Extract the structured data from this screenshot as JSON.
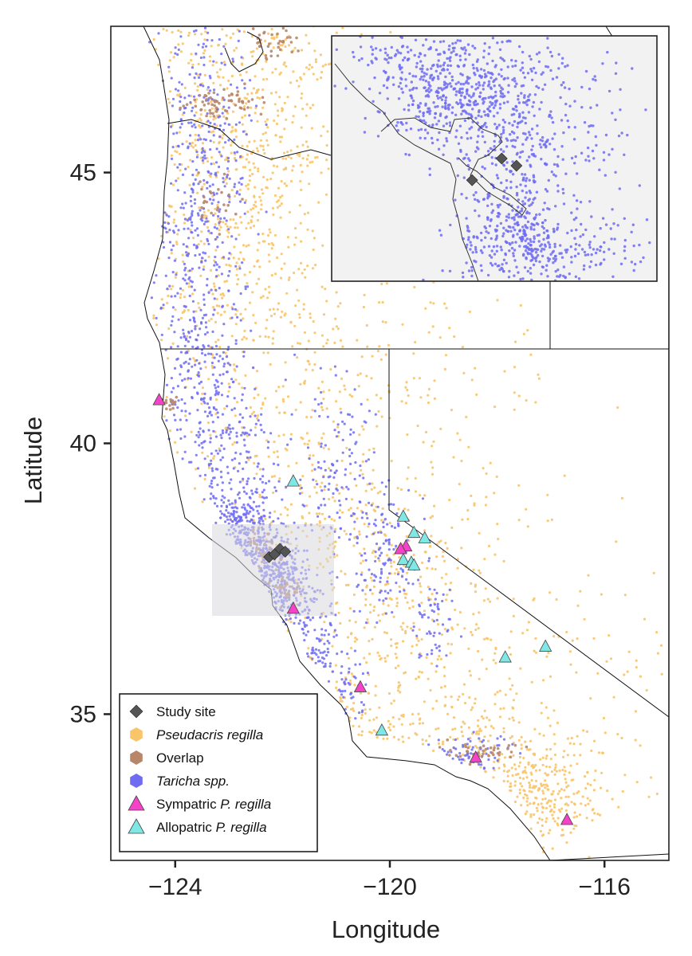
{
  "chart_data": {
    "type": "scatter",
    "xlabel": "Longitude",
    "ylabel": "Latitude",
    "xlim": [
      -125.2,
      -114.8
    ],
    "ylim": [
      32.3,
      47.7
    ],
    "x_ticks": [
      {
        "value": -124,
        "label": "−124"
      },
      {
        "value": -120,
        "label": "−120"
      },
      {
        "value": -116,
        "label": "−116"
      }
    ],
    "y_ticks": [
      {
        "value": 35,
        "label": "35"
      },
      {
        "value": 40,
        "label": "40"
      },
      {
        "value": 45,
        "label": "45"
      }
    ],
    "grid": false,
    "legend_position": "bottom-left",
    "colors": {
      "study_site": "#555555",
      "pseudacris": "#f8c56a",
      "overlap": "#b8876a",
      "taricha": "#6f6cf2",
      "sympatric": "#f542c8",
      "allopatric": "#7fe8e4"
    },
    "legend": [
      {
        "key": "study_site",
        "label": "Study site",
        "italic": false,
        "prefix": "",
        "marker": "diamond"
      },
      {
        "key": "pseudacris",
        "label": "Pseudacris regilla",
        "italic": true,
        "prefix": "",
        "marker": "hexagon"
      },
      {
        "key": "overlap",
        "label": "Overlap",
        "italic": false,
        "prefix": "",
        "marker": "hexagon"
      },
      {
        "key": "taricha",
        "label": "Taricha spp.",
        "italic": true,
        "prefix": "",
        "marker": "hexagon"
      },
      {
        "key": "sympatric",
        "label": "P. regilla",
        "italic": true,
        "prefix": "Sympatric ",
        "marker": "triangle"
      },
      {
        "key": "allopatric",
        "label": "P. regilla",
        "italic": true,
        "prefix": "Allopatric ",
        "marker": "triangle"
      }
    ],
    "series": [
      {
        "key": "study_site",
        "points": [
          [
            -122.25,
            37.9
          ],
          [
            -122.05,
            38.05
          ],
          [
            -121.95,
            38.0
          ],
          [
            -122.15,
            37.95
          ]
        ]
      },
      {
        "key": "sympatric",
        "points": [
          [
            -124.3,
            40.8
          ],
          [
            -121.8,
            36.95
          ],
          [
            -120.55,
            35.5
          ],
          [
            -119.7,
            38.1
          ],
          [
            -119.8,
            38.05
          ],
          [
            -118.4,
            34.2
          ],
          [
            -116.7,
            33.05
          ]
        ]
      },
      {
        "key": "allopatric",
        "points": [
          [
            -121.8,
            39.3
          ],
          [
            -119.75,
            38.65
          ],
          [
            -119.55,
            38.35
          ],
          [
            -119.35,
            38.25
          ],
          [
            -119.75,
            37.85
          ],
          [
            -119.6,
            37.8
          ],
          [
            -119.55,
            37.75
          ],
          [
            -117.85,
            36.05
          ],
          [
            -117.1,
            36.25
          ],
          [
            -120.15,
            34.7
          ]
        ]
      }
    ],
    "inset": {
      "lon_range": [
        -123.2,
        -121.0
      ],
      "lat_range": [
        37.2,
        38.9
      ]
    }
  }
}
